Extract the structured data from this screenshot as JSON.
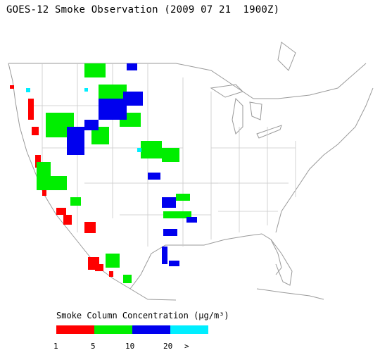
{
  "title": "GOES-12 Smoke Observation (2009 07 21  1900Z)",
  "legend": {
    "title": "Smoke Column Concentration (μg/m³)",
    "bins": [
      {
        "label": "1",
        "color": "#ff0000"
      },
      {
        "label": "5",
        "color": "#00ee00"
      },
      {
        "label": "10",
        "color": "#0000ee"
      },
      {
        "label": "20",
        "color": "#00eeff"
      }
    ],
    "overflow_label": ">"
  },
  "map": {
    "region": "Continental United States",
    "smoke_colors": {
      "low": "#ff0000",
      "mid": "#00ee00",
      "high": "#0000ee",
      "very_high": "#00eeff"
    }
  }
}
